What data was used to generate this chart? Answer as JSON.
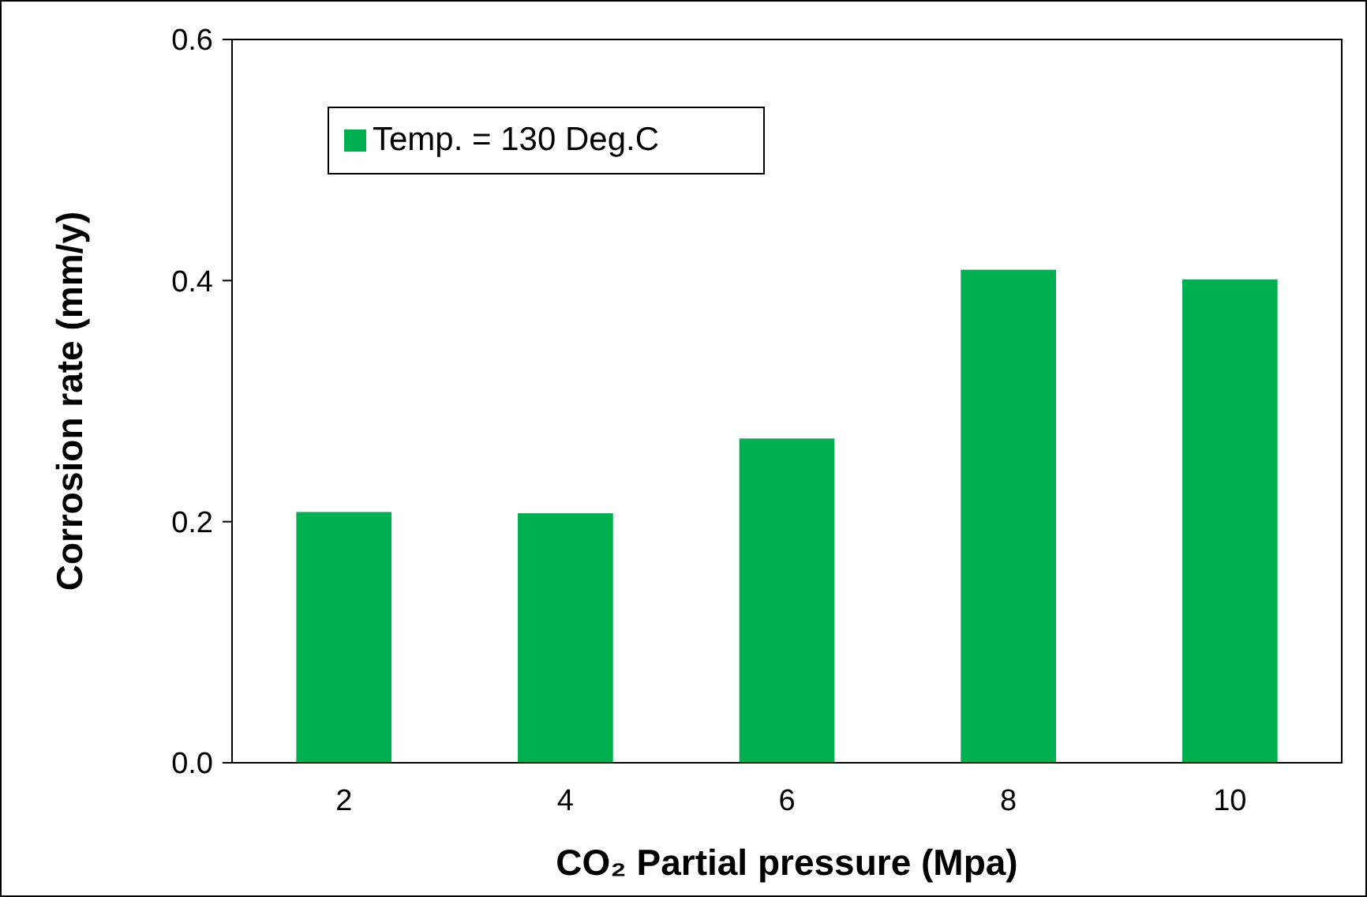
{
  "chart_data": {
    "type": "bar",
    "xlabel": "CO₂ Partial pressure (Mpa)",
    "ylabel": "Corrosion rate (mm/y)",
    "categories": [
      "2",
      "4",
      "6",
      "8",
      "10"
    ],
    "series": [
      {
        "name": "Temp. = 130 Deg.C",
        "color": "#00b050",
        "values": [
          0.208,
          0.207,
          0.269,
          0.409,
          0.401
        ]
      }
    ],
    "ylim": [
      0,
      0.6
    ],
    "yticks": [
      {
        "value": 0,
        "label": "0.0"
      },
      0.2,
      0.4,
      0.6
    ],
    "grid": false,
    "legend": "top left"
  }
}
